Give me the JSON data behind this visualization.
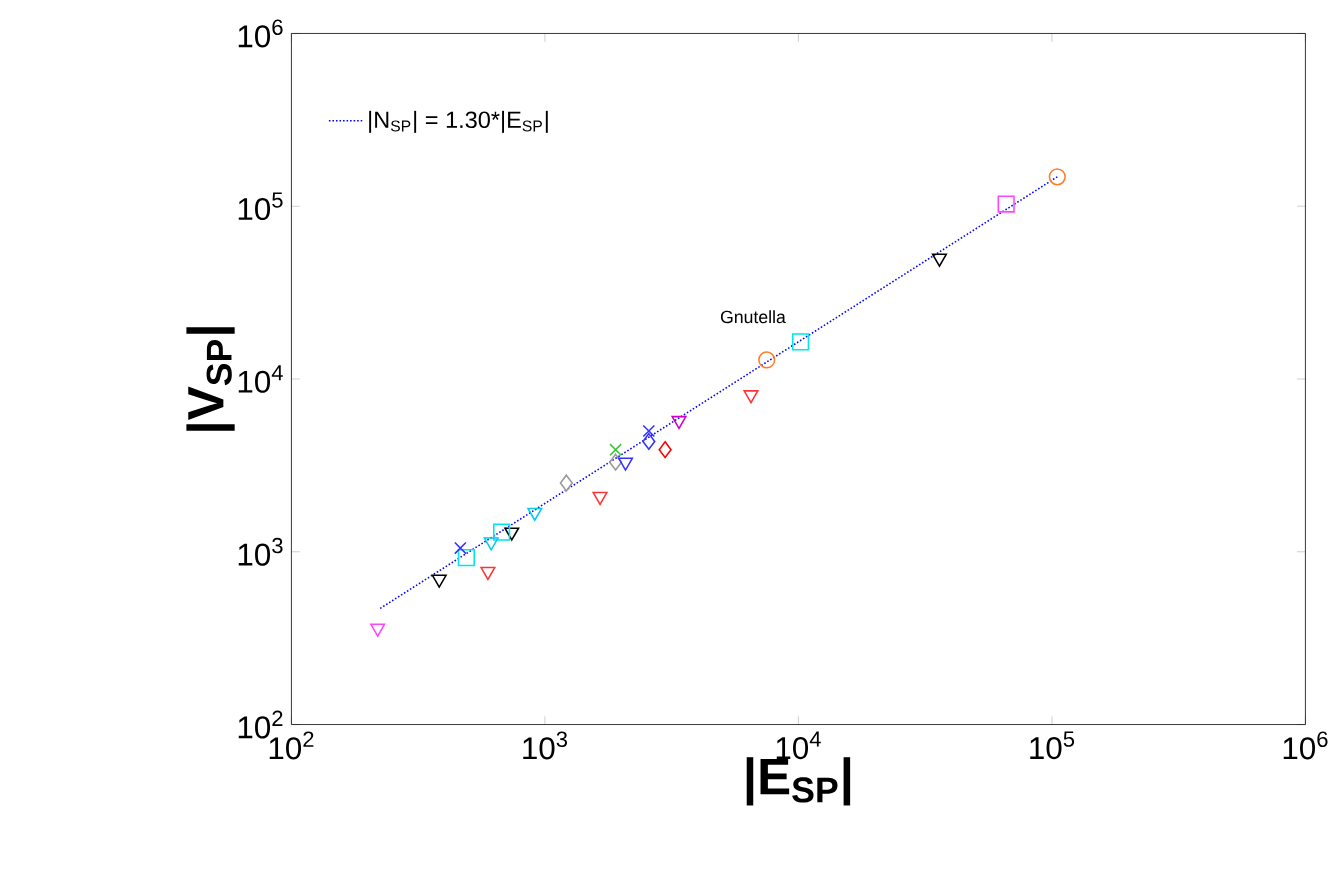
{
  "chart_data": {
    "type": "scatter",
    "xlabel": "|E$_{SP}$|",
    "ylabel": "|V$_{SP}$|",
    "log": "xy",
    "xlim": [
      100,
      1000000
    ],
    "ylim": [
      100,
      1000000
    ],
    "xticks": [
      {
        "value": 100,
        "label": "10$^{2}$"
      },
      {
        "value": 1000,
        "label": "10$^{3}$"
      },
      {
        "value": 10000,
        "label": "10$^{4}$"
      },
      {
        "value": 100000,
        "label": "10$^{5}$"
      },
      {
        "value": 1000000,
        "label": "10$^{6}$"
      }
    ],
    "yticks": [
      {
        "value": 100,
        "label": "10$^{2}$"
      },
      {
        "value": 1000,
        "label": "10$^{3}$"
      },
      {
        "value": 10000,
        "label": "10$^{4}$"
      },
      {
        "value": 100000,
        "label": "10$^{5}$"
      },
      {
        "value": 1000000,
        "label": "10$^{6}$"
      }
    ],
    "grid": false,
    "legend": "top left",
    "annotations": [
      {
        "text": "Gnutella",
        "x": 10200,
        "y": 16400
      }
    ],
    "series": [
      {
        "name": "|N$_{SP}$| = 1.30*|E$_{SP}$|",
        "type": "line",
        "line_style": "dotted",
        "marker": "none",
        "color": "#0000ff",
        "x": [
          224,
          105000
        ],
        "values": [
          470,
          148000
        ]
      },
      {
        "color": "#ff44ff",
        "marker": "triangle",
        "x": [
          219
        ],
        "values": [
          361
        ]
      },
      {
        "color": "#000000",
        "marker": "triangle",
        "x": [
          383,
          740,
          36000
        ],
        "values": [
          694,
          1300,
          50000
        ]
      },
      {
        "color": "#00e5ee",
        "marker": "square",
        "x": [
          490,
          675,
          10200
        ],
        "values": [
          925,
          1300,
          16400
        ]
      },
      {
        "color": "#3333ff",
        "marker": "cross",
        "x": [
          464,
          2570
        ],
        "values": [
          1050,
          5000
        ]
      },
      {
        "color": "#ff3333",
        "marker": "triangle",
        "x": [
          596,
          1650,
          6500
        ],
        "values": [
          769,
          2090,
          8100
        ]
      },
      {
        "color": "#00ccee",
        "marker": "triangle",
        "x": [
          614,
          912
        ],
        "values": [
          1140,
          1690
        ]
      },
      {
        "color": "#999999",
        "marker": "diamond",
        "x": [
          1215,
          1900
        ],
        "values": [
          2500,
          3300
        ]
      },
      {
        "color": "#33cc33",
        "marker": "cross",
        "x": [
          1900
        ],
        "values": [
          3900
        ]
      },
      {
        "color": "#3333ff",
        "marker": "triangle",
        "x": [
          2080
        ],
        "values": [
          3300
        ]
      },
      {
        "color": "#3333ff",
        "marker": "diamond",
        "x": [
          2570
        ],
        "values": [
          4350
        ]
      },
      {
        "color": "#ff0000",
        "marker": "diamond",
        "x": [
          2980
        ],
        "values": [
          3900
        ]
      },
      {
        "color": "#cc00cc",
        "marker": "triangle",
        "x": [
          3380
        ],
        "values": [
          5750
        ]
      },
      {
        "color": "#ff7f27",
        "marker": "circle",
        "x": [
          7500,
          105000
        ],
        "values": [
          12900,
          148000
        ]
      },
      {
        "color": "#ff44ff",
        "marker": "square",
        "x": [
          66000
        ],
        "values": [
          103000
        ]
      }
    ]
  }
}
